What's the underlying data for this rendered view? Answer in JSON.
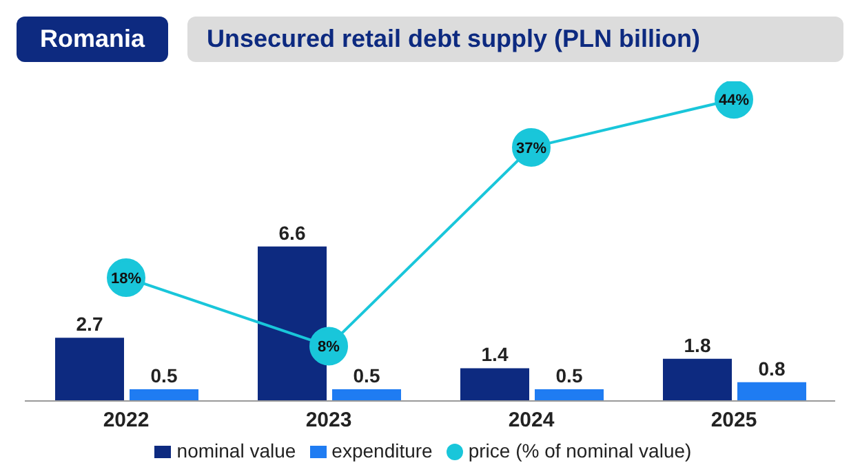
{
  "chart_data": {
    "type": "bar",
    "title": "Unsecured retail debt supply (PLN billion)",
    "subtitle": "Romania",
    "categories": [
      "2022",
      "2023",
      "2024",
      "2025"
    ],
    "series": [
      {
        "name": "nominal value",
        "color": "#0d2a80",
        "values": [
          2.7,
          6.6,
          1.4,
          1.8
        ]
      },
      {
        "name": "expenditure",
        "color": "#1f7cf2",
        "values": [
          0.5,
          0.5,
          0.5,
          0.8
        ]
      },
      {
        "name": "price (% of nominal value)",
        "type": "line",
        "axis": "y2",
        "color": "#19c6da",
        "values": [
          18,
          8,
          37,
          44
        ],
        "value_labels": [
          "18%",
          "8%",
          "37%",
          "44%"
        ]
      }
    ],
    "data_labels": true,
    "marker": "circle",
    "legend": "bottom",
    "tick_labels": "x"
  }
}
